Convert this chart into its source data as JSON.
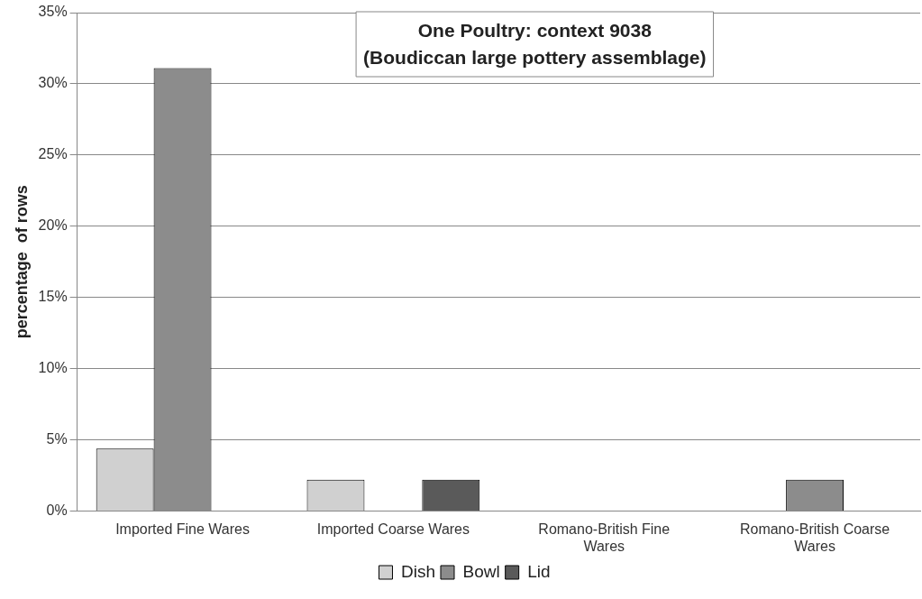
{
  "chart_data": {
    "type": "bar",
    "title": "One Poultry: context 9038",
    "subtitle": "(Boudiccan large pottery assemblage)",
    "ylabel": "percentage  of rows",
    "categories": [
      "Imported Fine Wares",
      "Imported Coarse Wares",
      "Romano-British Fine Wares",
      "Romano-British Coarse Wares"
    ],
    "series": [
      {
        "name": "Dish",
        "color": "#d0d0d0",
        "values": [
          4.4,
          2.2,
          0,
          0
        ]
      },
      {
        "name": "Bowl",
        "color": "#8c8c8c",
        "values": [
          31.1,
          0,
          0,
          2.2
        ]
      },
      {
        "name": "Lid",
        "color": "#5a5a5a",
        "values": [
          0,
          2.2,
          0,
          0
        ]
      }
    ],
    "ylim": [
      0,
      35
    ],
    "yticks": [
      {
        "value": 0,
        "label": "0%"
      },
      {
        "value": 5,
        "label": "5%"
      },
      {
        "value": 10,
        "label": "10%"
      },
      {
        "value": 15,
        "label": "15%"
      },
      {
        "value": 20,
        "label": "20%"
      },
      {
        "value": 25,
        "label": "25%"
      },
      {
        "value": 30,
        "label": "30%"
      },
      {
        "value": 35,
        "label": "35%"
      }
    ],
    "grid": "y",
    "legend": "bottom"
  }
}
